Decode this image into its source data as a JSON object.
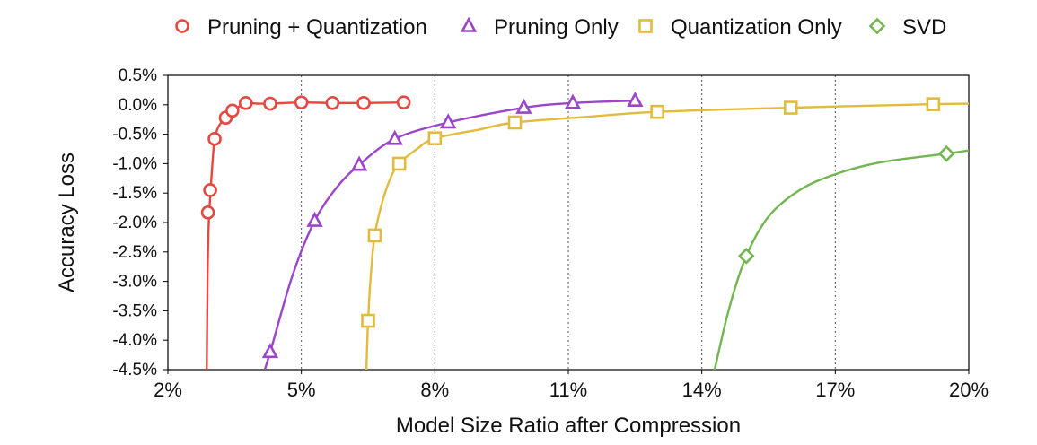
{
  "chart_data": {
    "type": "line",
    "xlabel": "Model Size Ratio after Compression",
    "ylabel": "Accuracy Loss",
    "xlim": [
      2,
      20
    ],
    "ylim": [
      -4.5,
      0.5
    ],
    "x_ticks": [
      2,
      5,
      8,
      11,
      14,
      17,
      20
    ],
    "x_tick_labels": [
      "2%",
      "5%",
      "8%",
      "11%",
      "14%",
      "17%",
      "20%"
    ],
    "y_ticks": [
      0.5,
      0.0,
      -0.5,
      -1.0,
      -1.5,
      -2.0,
      -2.5,
      -3.0,
      -3.5,
      -4.0,
      -4.5
    ],
    "y_tick_labels": [
      "0.5%",
      "0.0%",
      "-0.5%",
      "-1.0%",
      "-1.5%",
      "-2.0%",
      "-2.5%",
      "-3.0%",
      "-3.5%",
      "-4.0%",
      "-4.5%"
    ],
    "grid": "vertical dotted",
    "legend_position": "top",
    "series": [
      {
        "name": "Pruning + Quantization",
        "marker": "circle",
        "color": "#e8473f",
        "x": [
          2.9,
          2.95,
          3.05,
          3.3,
          3.45,
          3.75,
          4.3,
          5.0,
          5.7,
          6.4,
          7.3
        ],
        "y": [
          -1.83,
          -1.45,
          -0.58,
          -0.22,
          -0.1,
          0.03,
          0.02,
          0.04,
          0.03,
          0.03,
          0.04
        ],
        "curve_x": [
          2.87,
          2.89,
          2.91,
          2.93,
          2.96,
          3.0,
          3.05,
          3.12,
          3.2,
          3.3,
          3.45,
          3.6,
          3.75,
          4.0,
          4.3,
          5.0,
          5.7,
          6.4,
          7.3
        ],
        "curve_y": [
          -4.8,
          -3.0,
          -2.2,
          -1.83,
          -1.45,
          -1.0,
          -0.58,
          -0.4,
          -0.3,
          -0.22,
          -0.1,
          -0.03,
          0.03,
          0.02,
          0.02,
          0.04,
          0.03,
          0.03,
          0.04
        ]
      },
      {
        "name": "Pruning Only",
        "marker": "triangle",
        "color": "#9b45c8",
        "x": [
          4.3,
          5.3,
          6.3,
          7.1,
          8.3,
          10.0,
          11.1,
          12.5
        ],
        "y": [
          -4.2,
          -1.97,
          -1.02,
          -0.58,
          -0.3,
          -0.05,
          0.03,
          0.07
        ],
        "curve_x": [
          4.05,
          4.3,
          4.8,
          5.3,
          5.8,
          6.3,
          7.1,
          8.3,
          10.0,
          11.1,
          12.5
        ],
        "curve_y": [
          -4.8,
          -4.2,
          -2.9,
          -1.97,
          -1.4,
          -1.02,
          -0.58,
          -0.3,
          -0.05,
          0.03,
          0.07
        ]
      },
      {
        "name": "Quantization Only",
        "marker": "square",
        "color": "#e3bb3c",
        "x": [
          6.5,
          6.65,
          7.2,
          8.0,
          9.8,
          13.0,
          16.0,
          19.2
        ],
        "y": [
          -3.67,
          -2.22,
          -1.0,
          -0.57,
          -0.3,
          -0.12,
          -0.05,
          0.01
        ],
        "curve_x": [
          6.45,
          6.5,
          6.57,
          6.65,
          6.8,
          7.0,
          7.2,
          7.6,
          8.0,
          9.0,
          9.8,
          11.5,
          13.0,
          16.0,
          19.2,
          20.3
        ],
        "curve_y": [
          -4.8,
          -3.67,
          -2.8,
          -2.22,
          -1.7,
          -1.25,
          -1.0,
          -0.75,
          -0.57,
          -0.42,
          -0.3,
          -0.2,
          -0.12,
          -0.05,
          0.01,
          0.02
        ]
      },
      {
        "name": "SVD",
        "marker": "diamond",
        "color": "#72b650",
        "x": [
          15.0,
          19.5
        ],
        "y": [
          -2.57,
          -0.83
        ],
        "curve_x": [
          14.2,
          14.6,
          15.0,
          15.5,
          16.2,
          17.0,
          18.0,
          19.5,
          20.5
        ],
        "curve_y": [
          -4.8,
          -3.5,
          -2.57,
          -1.9,
          -1.45,
          -1.18,
          -0.98,
          -0.83,
          -0.72
        ]
      }
    ]
  }
}
